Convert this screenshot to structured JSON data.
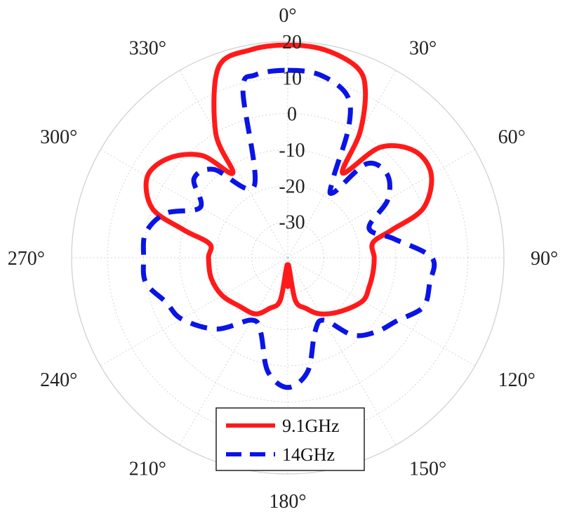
{
  "chart_data": {
    "type": "polar-line",
    "angle_unit": "deg",
    "angle_zero": "top",
    "angle_direction": "clockwise",
    "angle_ticks": [
      0,
      30,
      60,
      90,
      120,
      150,
      180,
      210,
      240,
      270,
      300,
      330
    ],
    "angle_tick_labels": [
      "0°",
      "30°",
      "60°",
      "90°",
      "120°",
      "150°",
      "180°",
      "210°",
      "240°",
      "270°",
      "300°",
      "330°"
    ],
    "rlim": [
      -40,
      20
    ],
    "r_ticks": [
      -30,
      -20,
      -10,
      0,
      10,
      20
    ],
    "r_tick_labels": [
      "-30",
      "-20",
      "-10",
      "0",
      "10",
      "20"
    ],
    "grid": true,
    "legend": "bottom-center",
    "series": [
      {
        "name": "9.1GHz",
        "color": "#ff1a1a",
        "dash": "solid",
        "points": [
          [
            0,
            19
          ],
          [
            10,
            18.6
          ],
          [
            20,
            16.2
          ],
          [
            25,
            11
          ],
          [
            30,
            0
          ],
          [
            33,
            -12
          ],
          [
            40,
            0
          ],
          [
            50,
            6
          ],
          [
            60,
            6
          ],
          [
            70,
            0
          ],
          [
            75,
            -10
          ],
          [
            80,
            -16
          ],
          [
            90,
            -16
          ],
          [
            100,
            -16
          ],
          [
            110,
            -16
          ],
          [
            120,
            -16
          ],
          [
            135,
            -19
          ],
          [
            150,
            -22
          ],
          [
            160,
            -25
          ],
          [
            170,
            -28
          ],
          [
            175,
            -38
          ],
          [
            180,
            -32
          ],
          [
            185,
            -38
          ],
          [
            190,
            -28
          ],
          [
            200,
            -25
          ],
          [
            210,
            -22
          ],
          [
            225,
            -21
          ],
          [
            240,
            -19
          ],
          [
            255,
            -18
          ],
          [
            270,
            -18
          ],
          [
            280,
            -18
          ],
          [
            285,
            -10
          ],
          [
            290,
            0
          ],
          [
            300,
            5
          ],
          [
            310,
            3
          ],
          [
            320,
            -3
          ],
          [
            327,
            -12
          ],
          [
            330,
            0
          ],
          [
            340,
            16.2
          ],
          [
            350,
            18.6
          ]
        ]
      },
      {
        "name": "14GHz",
        "color": "#0a14e6",
        "dash": "dashed",
        "points": [
          [
            0,
            12
          ],
          [
            10,
            11.5
          ],
          [
            20,
            8
          ],
          [
            25,
            0
          ],
          [
            30,
            -15
          ],
          [
            35,
            -18
          ],
          [
            40,
            -6
          ],
          [
            50,
            -4
          ],
          [
            60,
            -8
          ],
          [
            70,
            -16
          ],
          [
            80,
            -10
          ],
          [
            90,
            0
          ],
          [
            100,
            0
          ],
          [
            110,
            0
          ],
          [
            120,
            -5
          ],
          [
            130,
            -8
          ],
          [
            140,
            -12
          ],
          [
            150,
            -20
          ],
          [
            160,
            -18
          ],
          [
            170,
            -8
          ],
          [
            180,
            -4
          ],
          [
            190,
            -8
          ],
          [
            200,
            -18
          ],
          [
            210,
            -20
          ],
          [
            225,
            -12
          ],
          [
            240,
            -6
          ],
          [
            250,
            -4
          ],
          [
            260,
            0
          ],
          [
            270,
            0
          ],
          [
            280,
            0
          ],
          [
            290,
            -4
          ],
          [
            300,
            -12
          ],
          [
            310,
            -6
          ],
          [
            320,
            -8
          ],
          [
            335,
            -18
          ],
          [
            345,
            8
          ],
          [
            350,
            11.5
          ]
        ]
      }
    ]
  }
}
